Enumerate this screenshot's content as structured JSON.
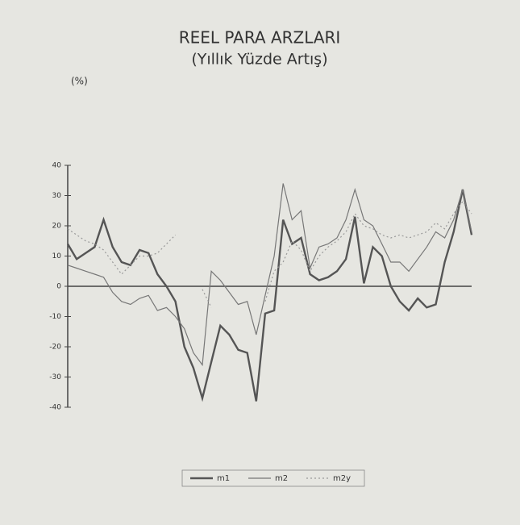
{
  "chart_data": {
    "type": "line",
    "title": "REEL PARA ARZLARI",
    "subtitle": "(Yıllık Yüzde Artış)",
    "y_label": "(%)",
    "categories": [
      null,
      null,
      null,
      null,
      null,
      null,
      null,
      null,
      null,
      null,
      null,
      null,
      null,
      null,
      null,
      null,
      null,
      null,
      null,
      null,
      null,
      null,
      null,
      null,
      null,
      null,
      null,
      null,
      null,
      null,
      null,
      null,
      null,
      null,
      null,
      null,
      null,
      null,
      null,
      null,
      null,
      null,
      null,
      null,
      null,
      null
    ],
    "series": [
      {
        "name": "m1",
        "color": "#555555",
        "style": "thick",
        "values": [
          14,
          9,
          11,
          13,
          22,
          13,
          8,
          7,
          12,
          11,
          4,
          0,
          -5,
          -20,
          -27,
          -37,
          -25,
          -13,
          -16,
          -21,
          -22,
          -38,
          -9,
          -8,
          22,
          14,
          16,
          4,
          2,
          3,
          5,
          9,
          23,
          1,
          13,
          10,
          0,
          -5,
          -8,
          -4,
          -7,
          -6,
          8,
          18,
          32,
          17
        ]
      },
      {
        "name": "m2",
        "color": "#777777",
        "style": "thin",
        "values": [
          7,
          6,
          5,
          4,
          3,
          -2,
          -5,
          -6,
          -4,
          -3,
          -8,
          -7,
          -10,
          -14,
          -22,
          -26,
          5,
          2,
          -2,
          -6,
          -5,
          -16,
          -3,
          10,
          34,
          22,
          25,
          6,
          13,
          14,
          16,
          22,
          32,
          22,
          20,
          14,
          8,
          8,
          5,
          9,
          13,
          18,
          16,
          22,
          32,
          18
        ]
      },
      {
        "name": "m2y",
        "color": "#999999",
        "style": "dotted",
        "values": [
          19,
          17,
          15,
          14,
          12,
          8,
          4,
          7,
          10,
          10,
          11,
          14,
          17,
          null,
          null,
          -1,
          -7,
          null,
          null,
          null,
          null,
          null,
          -5,
          5,
          8,
          15,
          12,
          5,
          10,
          13,
          15,
          18,
          24,
          20,
          19,
          17,
          16,
          17,
          16,
          17,
          18,
          21,
          19,
          24,
          28,
          24
        ]
      }
    ],
    "ylim": [
      -40,
      40
    ],
    "yticks": [
      40,
      30,
      20,
      10,
      0,
      -10,
      -20,
      -30,
      -40
    ],
    "legend": "bottom"
  }
}
